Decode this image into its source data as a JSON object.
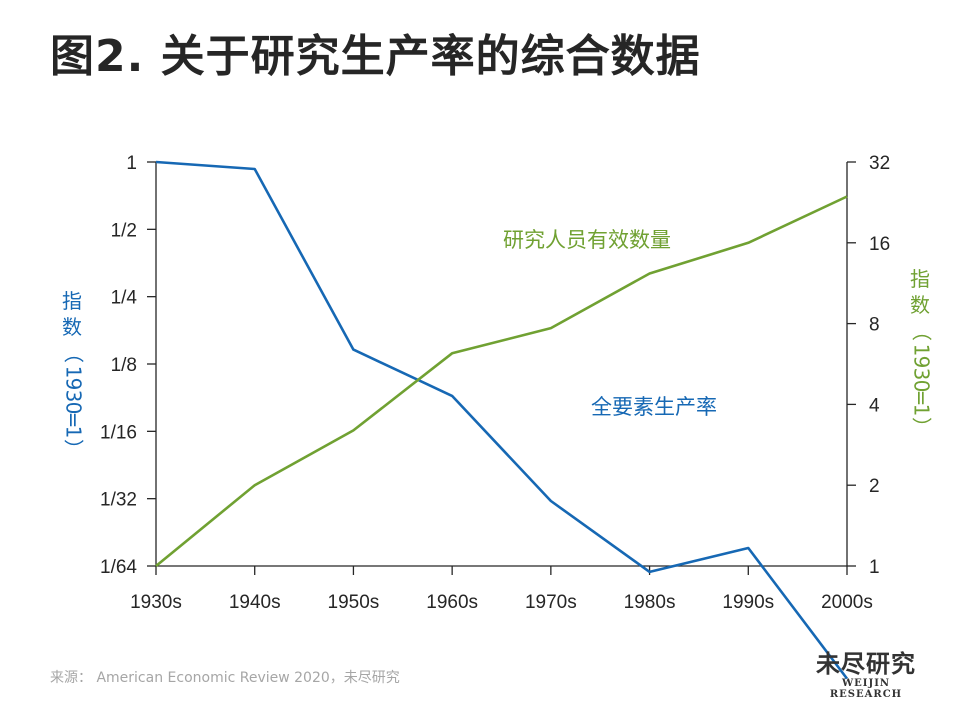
{
  "title": "图2. 关于研究生产率的综合数据",
  "source": "来源：  American Economic Review 2020，未尽研究",
  "logo": {
    "cn": "未尽研究",
    "en": "WEIJIN RESEARCH"
  },
  "colors": {
    "blue": "#1668b4",
    "green": "#70a132",
    "axis": "#262626"
  },
  "chart_data": {
    "type": "line",
    "x": [
      "1930s",
      "1940s",
      "1950s",
      "1960s",
      "1970s",
      "1980s",
      "1990s",
      "2000s"
    ],
    "left_axis": {
      "label": "指数（1930=1）",
      "scale": "log2",
      "ticks": [
        "1",
        "1/2",
        "1/4",
        "1/8",
        "1/16",
        "1/32",
        "1/64"
      ],
      "range": [
        0.015625,
        1
      ]
    },
    "right_axis": {
      "label": "指数（1930=1）",
      "scale": "log2",
      "ticks": [
        "32",
        "16",
        "8",
        "4",
        "2",
        "1"
      ],
      "range": [
        1,
        32
      ]
    },
    "series": [
      {
        "name": "全要素生产率",
        "axis": "left",
        "color": "#1668b4",
        "values": [
          1,
          0.93,
          0.145,
          0.09,
          0.0305,
          0.0147,
          0.0188,
          0.0049
        ]
      },
      {
        "name": "研究人员有效数量",
        "axis": "right",
        "color": "#70a132",
        "values": [
          1,
          2.0,
          3.2,
          6.2,
          7.7,
          12.3,
          16.0,
          23.8
        ]
      }
    ]
  }
}
